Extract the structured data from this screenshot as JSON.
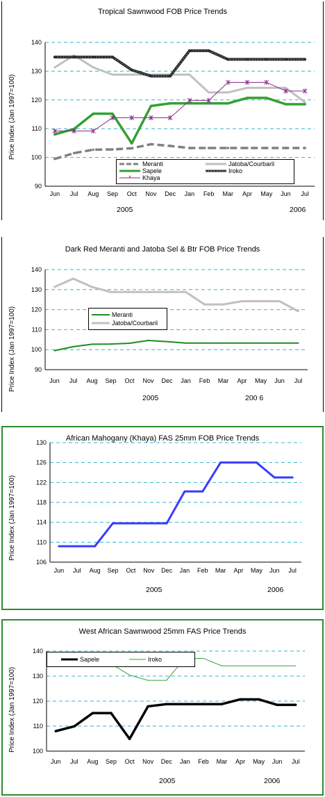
{
  "chart_data": [
    {
      "type": "line",
      "title": "Tropical Sawnwood FOB Price Trends",
      "ylabel": "Price Index (Jan 1997=100)",
      "ylim": [
        90,
        140
      ],
      "yticks": [
        90,
        100,
        110,
        120,
        130,
        140
      ],
      "grid": "horizontal dashed",
      "legend": "bottom-center",
      "categories": [
        "Jun",
        "Jul",
        "Aug",
        "Sep",
        "Oct",
        "Nov",
        "Dec",
        "Jan",
        "Feb",
        "Mar",
        "Apr",
        "May",
        "Jun",
        "Jul"
      ],
      "year_labels": [
        "2005",
        "2006"
      ],
      "series": [
        {
          "name": "Meranti",
          "color": "#808080",
          "style": "dashed",
          "values": [
            99.5,
            101.5,
            102.7,
            102.8,
            103.2,
            104.6,
            104,
            103.3,
            103.3,
            103.3,
            103.3,
            103.3,
            103.3,
            103.3
          ]
        },
        {
          "name": "Jatoba/Courbaril",
          "color": "#c0c0c0",
          "style": "solid",
          "values": [
            131.3,
            135.5,
            131.3,
            128.8,
            128.8,
            128.8,
            128.8,
            128.8,
            122.6,
            122.6,
            124.2,
            124.2,
            124.2,
            119.2
          ]
        },
        {
          "name": "Sapele",
          "color": "#33a033",
          "style": "solid",
          "values": [
            108,
            109.9,
            115.2,
            115.2,
            104.9,
            117.9,
            118.8,
            118.8,
            118.8,
            118.8,
            120.7,
            120.7,
            118.5,
            118.5
          ]
        },
        {
          "name": "Iroko",
          "color": "#2e2e2e",
          "style": "dotted-heavy",
          "values": [
            134.9,
            134.9,
            134.9,
            134.9,
            130.4,
            128.3,
            128.3,
            137.1,
            137.1,
            134.1,
            134.1,
            134.1,
            134.1,
            134.1
          ]
        },
        {
          "name": "Khaya",
          "color": "#8b2a8b",
          "style": "star-markers",
          "values": [
            109.2,
            109.2,
            109.2,
            113.8,
            113.8,
            113.8,
            113.8,
            119.8,
            119.8,
            126.1,
            126.1,
            126.1,
            123.1,
            123.1
          ]
        }
      ]
    },
    {
      "type": "line",
      "title": "Dark Red Meranti and Jatoba Sel & Btr FOB Price Trends",
      "ylabel": "Price Index (Jan 1997=100)",
      "ylim": [
        90,
        140
      ],
      "yticks": [
        90,
        100,
        110,
        120,
        130,
        140
      ],
      "grid": "horizontal dashed",
      "legend": "center-left",
      "categories": [
        "Jun",
        "Jul",
        "Aug",
        "Sep",
        "Oct",
        "Nov",
        "Dec",
        "Jan",
        "Feb",
        "Mar",
        "Apr",
        "May",
        "Jun",
        "Jul"
      ],
      "year_labels": [
        "2005",
        "200 6"
      ],
      "series": [
        {
          "name": "Meranti",
          "color": "#1e8c1e",
          "style": "solid",
          "values": [
            99.5,
            101.5,
            102.7,
            102.8,
            103.2,
            104.6,
            104,
            103.3,
            103.3,
            103.3,
            103.3,
            103.3,
            103.3,
            103.3
          ]
        },
        {
          "name": "Jatoba/Courbaril",
          "color": "#c0c0c0",
          "style": "solid",
          "values": [
            131.3,
            135.5,
            131.3,
            128.8,
            128.8,
            128.8,
            128.8,
            128.8,
            122.6,
            122.6,
            124.2,
            124.2,
            124.2,
            119.2
          ]
        }
      ]
    },
    {
      "type": "line",
      "title": "African Mahogany (Khaya) FAS 25mm FOB Price Trends",
      "ylabel": "Price Index (Jan 1997=100)",
      "ylim": [
        106,
        130
      ],
      "yticks": [
        106,
        110,
        114,
        118,
        122,
        126,
        130
      ],
      "grid": "horizontal dashed",
      "categories": [
        "Jun",
        "Jul",
        "Aug",
        "Sep",
        "Oct",
        "Nov",
        "Dec",
        "Jan",
        "Feb",
        "Mar",
        "Apr",
        "May",
        "Jun",
        "Jul"
      ],
      "year_labels": [
        "2005",
        "2006"
      ],
      "series": [
        {
          "name": "Khaya",
          "color": "#3a3aff",
          "style": "solid",
          "values": [
            109.2,
            109.2,
            109.2,
            113.8,
            113.8,
            113.8,
            113.8,
            120.2,
            120.2,
            126,
            126,
            126,
            123,
            123
          ]
        }
      ]
    },
    {
      "type": "line",
      "title": "West  African Sawnwood 25mm FAS Price Trends",
      "ylabel": "Price Index (Jan 1997=100)",
      "ylim": [
        100,
        140
      ],
      "yticks": [
        100,
        110,
        120,
        130,
        140
      ],
      "grid": "horizontal dashed",
      "legend": "top-left",
      "categories": [
        "Jun",
        "Jul",
        "Aug",
        "Sep",
        "Oct",
        "Nov",
        "Dec",
        "Jan",
        "Feb",
        "Mar",
        "Apr",
        "May",
        "Jun",
        "Jul"
      ],
      "year_labels": [
        "2005",
        "2006"
      ],
      "series": [
        {
          "name": "Sapele",
          "color": "#000000",
          "style": "solid-heavy",
          "values": [
            108,
            109.9,
            115.2,
            115.2,
            104.9,
            117.9,
            118.8,
            118.8,
            118.8,
            118.8,
            120.7,
            120.7,
            118.5,
            118.5
          ]
        },
        {
          "name": "Iroko",
          "color": "#33a033",
          "style": "solid",
          "values": [
            134.9,
            134.9,
            134.9,
            134.9,
            130.4,
            128.3,
            128.3,
            137.1,
            137.1,
            134.1,
            134.1,
            134.1,
            134.1,
            134.1
          ]
        }
      ]
    }
  ]
}
